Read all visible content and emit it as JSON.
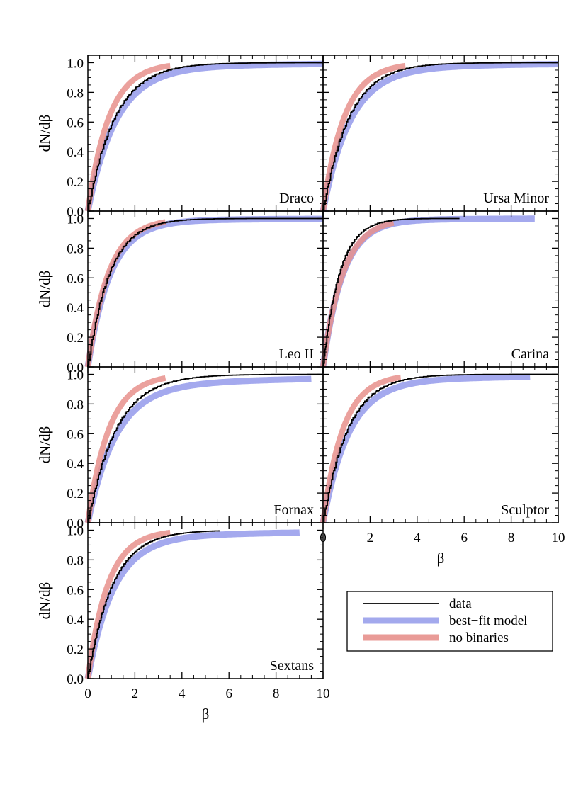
{
  "chart_data": {
    "type": "line",
    "ylabel": "dN/dβ",
    "xlabel": "β",
    "xlim": [
      0,
      10
    ],
    "ylim": [
      0,
      1.05
    ],
    "x_ticks": [
      "0",
      "2",
      "4",
      "6",
      "8",
      "10"
    ],
    "y_ticks": [
      "0.0",
      "0.2",
      "0.4",
      "0.6",
      "0.8",
      "1.0"
    ],
    "legend": {
      "placement": "lower-right",
      "entries": [
        {
          "key": "data",
          "label": "data",
          "color": "#000000"
        },
        {
          "key": "model",
          "label": "best−fit model",
          "color": "#9aa0ec"
        },
        {
          "key": "nobin",
          "label": "no binaries",
          "color": "#e7918c"
        }
      ]
    },
    "panels": [
      {
        "name": "Draco",
        "data": {
          "xmax": 10,
          "scale": 1.15
        },
        "model": {
          "xmax": 10,
          "scale": 1.2,
          "tail": 0.045,
          "tail_scale": 6
        },
        "nobin": {
          "xmax": 3.5,
          "scale": 0.9
        }
      },
      {
        "name": "Ursa Minor",
        "data": {
          "xmax": 10,
          "scale": 1.1
        },
        "model": {
          "xmax": 10,
          "scale": 1.15,
          "tail": 0.05,
          "tail_scale": 6
        },
        "nobin": {
          "xmax": 3.5,
          "scale": 0.9
        }
      },
      {
        "name": "Leo II",
        "data": {
          "xmax": 10,
          "scale": 0.92
        },
        "model": {
          "xmax": 10,
          "scale": 0.95,
          "tail": 0.02,
          "tail_scale": 5
        },
        "nobin": {
          "xmax": 3.3,
          "scale": 0.88
        }
      },
      {
        "name": "Carina",
        "data": {
          "xmax": 5.8,
          "scale": 0.7
        },
        "model": {
          "xmax": 9.0,
          "scale": 0.85,
          "tail": 0.01,
          "tail_scale": 5
        },
        "nobin": {
          "xmax": 3.0,
          "scale": 0.85
        }
      },
      {
        "name": "Fornax",
        "data": {
          "xmax": 10,
          "scale": 1.2
        },
        "model": {
          "xmax": 9.5,
          "scale": 1.2,
          "tail": 0.08,
          "tail_scale": 10
        },
        "nobin": {
          "xmax": 3.3,
          "scale": 0.9
        }
      },
      {
        "name": "Sculptor",
        "data": {
          "xmax": 10,
          "scale": 1.05
        },
        "model": {
          "xmax": 8.8,
          "scale": 1.1,
          "tail": 0.05,
          "tail_scale": 8
        },
        "nobin": {
          "xmax": 3.3,
          "scale": 0.85
        }
      },
      {
        "name": "Sextans",
        "data": {
          "xmax": 5.6,
          "scale": 1.05
        },
        "model": {
          "xmax": 9.0,
          "scale": 1.1,
          "tail": 0.05,
          "tail_scale": 8
        },
        "nobin": {
          "xmax": 3.5,
          "scale": 0.85
        }
      }
    ]
  }
}
